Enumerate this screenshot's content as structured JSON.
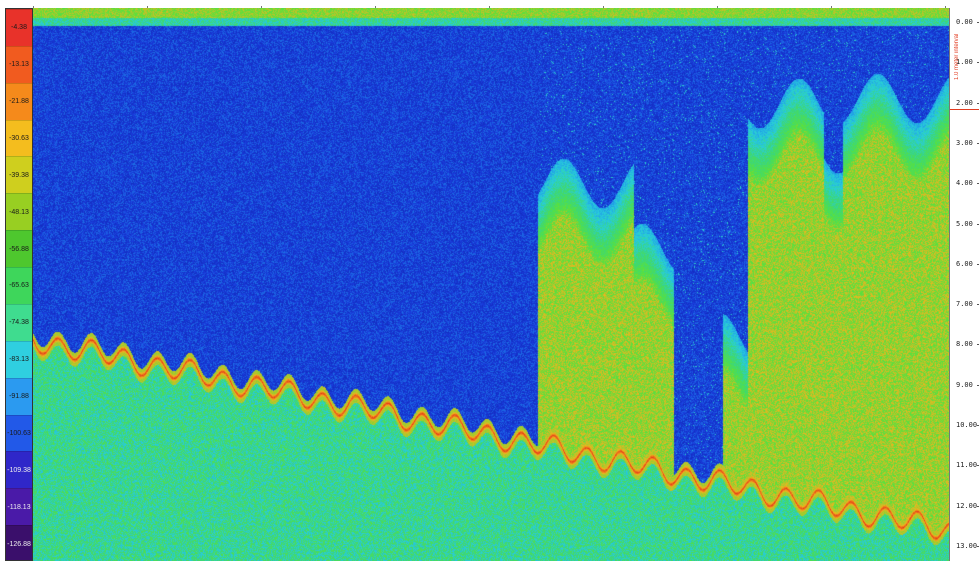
{
  "color_scale": {
    "labels": [
      "-4.38",
      "-13.13",
      "-21.88",
      "-30.63",
      "-39.38",
      "-48.13",
      "-56.88",
      "-65.63",
      "-74.38",
      "-83.13",
      "-91.88",
      "-100.63",
      "-109.38",
      "-118.13",
      "-126.88"
    ],
    "colors": [
      "#e8322a",
      "#f15b1f",
      "#f58a1b",
      "#f4bd1e",
      "#cfcf1e",
      "#98cf22",
      "#4ec72e",
      "#3ed65b",
      "#3fdc8f",
      "#2fcfe0",
      "#2b9af0",
      "#2259e8",
      "#2f27c9",
      "#4a1aa8",
      "#3a0f6b"
    ]
  },
  "depth_axis": {
    "labels": [
      "0.00",
      "1.00",
      "2.00",
      "3.00",
      "4.00",
      "5.00",
      "6.00",
      "7.00",
      "8.00",
      "9.00",
      "10.00",
      "11.00",
      "12.00",
      "13.00"
    ],
    "range_label": "1.0 meter interval"
  },
  "echogram": {
    "background_color": "#1330c8",
    "bottom_line_color": "#e82a1a"
  }
}
